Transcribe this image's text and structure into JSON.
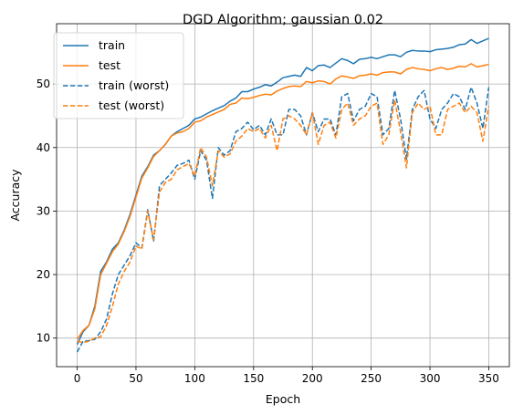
{
  "chart_data": {
    "type": "line",
    "title": "DGD Algorithm; gaussian 0.02",
    "xlabel": "Epoch",
    "ylabel": "Accuracy",
    "xlim": [
      -17.5,
      367.5
    ],
    "ylim": [
      5.5,
      59.5
    ],
    "xticks": [
      0,
      50,
      100,
      150,
      200,
      250,
      300,
      350
    ],
    "yticks": [
      10,
      20,
      30,
      40,
      50
    ],
    "grid": true,
    "legend_position": "top-left",
    "x": [
      0,
      5,
      10,
      15,
      20,
      25,
      30,
      35,
      40,
      45,
      50,
      55,
      60,
      65,
      70,
      75,
      80,
      85,
      90,
      95,
      100,
      105,
      110,
      115,
      120,
      125,
      130,
      135,
      140,
      145,
      150,
      155,
      160,
      165,
      170,
      175,
      180,
      185,
      190,
      195,
      200,
      205,
      210,
      215,
      220,
      225,
      230,
      235,
      240,
      245,
      250,
      255,
      260,
      265,
      270,
      275,
      280,
      285,
      290,
      295,
      300,
      305,
      310,
      315,
      320,
      325,
      330,
      335,
      340,
      345,
      350
    ],
    "series": [
      {
        "name": "train",
        "color": "#1f77b4",
        "dashed": false,
        "values": [
          9.0,
          11.0,
          12.0,
          15.0,
          20.5,
          22.0,
          24.0,
          25.0,
          27.0,
          29.5,
          32.5,
          35.5,
          37.0,
          38.8,
          39.5,
          40.5,
          41.8,
          42.5,
          43.0,
          43.5,
          44.5,
          44.8,
          45.3,
          45.8,
          46.2,
          46.6,
          47.3,
          47.8,
          48.8,
          48.8,
          49.2,
          49.5,
          49.9,
          49.7,
          50.3,
          51.0,
          51.2,
          51.4,
          51.2,
          52.6,
          52.1,
          52.9,
          53.0,
          52.6,
          53.3,
          54.0,
          53.7,
          53.2,
          53.9,
          54.0,
          54.2,
          54.0,
          54.3,
          54.6,
          54.6,
          54.3,
          55.0,
          55.3,
          55.2,
          55.2,
          55.1,
          55.4,
          55.5,
          55.6,
          55.8,
          56.2,
          56.3,
          57.0,
          56.4,
          56.8,
          57.2
        ]
      },
      {
        "name": "test",
        "color": "#ff7f0e",
        "dashed": false,
        "values": [
          9.8,
          11.2,
          12.0,
          14.6,
          20.0,
          21.8,
          23.6,
          24.8,
          26.8,
          29.2,
          32.2,
          35.2,
          36.8,
          38.6,
          39.5,
          40.5,
          41.8,
          42.3,
          42.5,
          43.0,
          44.0,
          44.2,
          44.8,
          45.2,
          45.6,
          46.0,
          46.8,
          47.0,
          47.8,
          47.7,
          47.9,
          48.2,
          48.4,
          48.3,
          48.9,
          49.3,
          49.6,
          49.7,
          49.6,
          50.4,
          50.2,
          50.5,
          50.4,
          50.0,
          50.8,
          51.3,
          51.1,
          50.9,
          51.3,
          51.4,
          51.6,
          51.4,
          51.8,
          51.9,
          51.9,
          51.6,
          52.3,
          52.6,
          52.4,
          52.3,
          52.1,
          52.4,
          52.6,
          52.3,
          52.5,
          52.8,
          52.7,
          53.2,
          52.7,
          52.9,
          53.1
        ]
      },
      {
        "name": "train (worst)",
        "color": "#1f77b4",
        "dashed": true,
        "values": [
          7.8,
          9.5,
          9.6,
          9.8,
          11.0,
          13.0,
          17.0,
          20.0,
          21.5,
          23.0,
          25.0,
          24.2,
          30.2,
          25.2,
          34.0,
          35.0,
          36.0,
          37.2,
          37.5,
          38.0,
          35.0,
          39.5,
          38.0,
          32.0,
          40.0,
          38.8,
          39.5,
          42.5,
          43.0,
          44.0,
          42.8,
          43.5,
          42.0,
          44.5,
          42.0,
          42.0,
          46.0,
          46.0,
          45.0,
          42.0,
          45.5,
          42.5,
          44.5,
          44.5,
          42.0,
          48.0,
          48.5,
          44.2,
          46.0,
          46.5,
          48.5,
          48.0,
          42.0,
          43.0,
          49.0,
          44.5,
          38.2,
          46.0,
          48.0,
          49.0,
          44.5,
          43.0,
          46.0,
          47.0,
          48.5,
          48.0,
          46.0,
          49.5,
          47.0,
          43.0,
          49.5
        ]
      },
      {
        "name": "test (worst)",
        "color": "#ff7f0e",
        "dashed": true,
        "values": [
          9.5,
          9.3,
          9.5,
          10.0,
          10.2,
          12.0,
          15.0,
          18.5,
          20.5,
          22.0,
          24.5,
          24.0,
          30.0,
          25.5,
          33.0,
          34.5,
          35.0,
          36.5,
          37.0,
          37.5,
          35.5,
          40.0,
          38.5,
          34.0,
          39.5,
          38.5,
          39.0,
          41.0,
          41.8,
          43.0,
          42.5,
          43.0,
          41.5,
          43.5,
          39.5,
          44.5,
          45.0,
          44.5,
          43.5,
          42.0,
          45.5,
          40.5,
          43.5,
          44.0,
          41.5,
          46.0,
          47.0,
          43.5,
          44.5,
          45.0,
          46.5,
          47.0,
          40.5,
          42.0,
          47.5,
          42.5,
          36.8,
          45.5,
          47.0,
          46.0,
          46.5,
          42.0,
          42.0,
          46.0,
          46.5,
          47.0,
          45.5,
          46.5,
          45.5,
          41.0,
          46.5
        ]
      }
    ]
  }
}
